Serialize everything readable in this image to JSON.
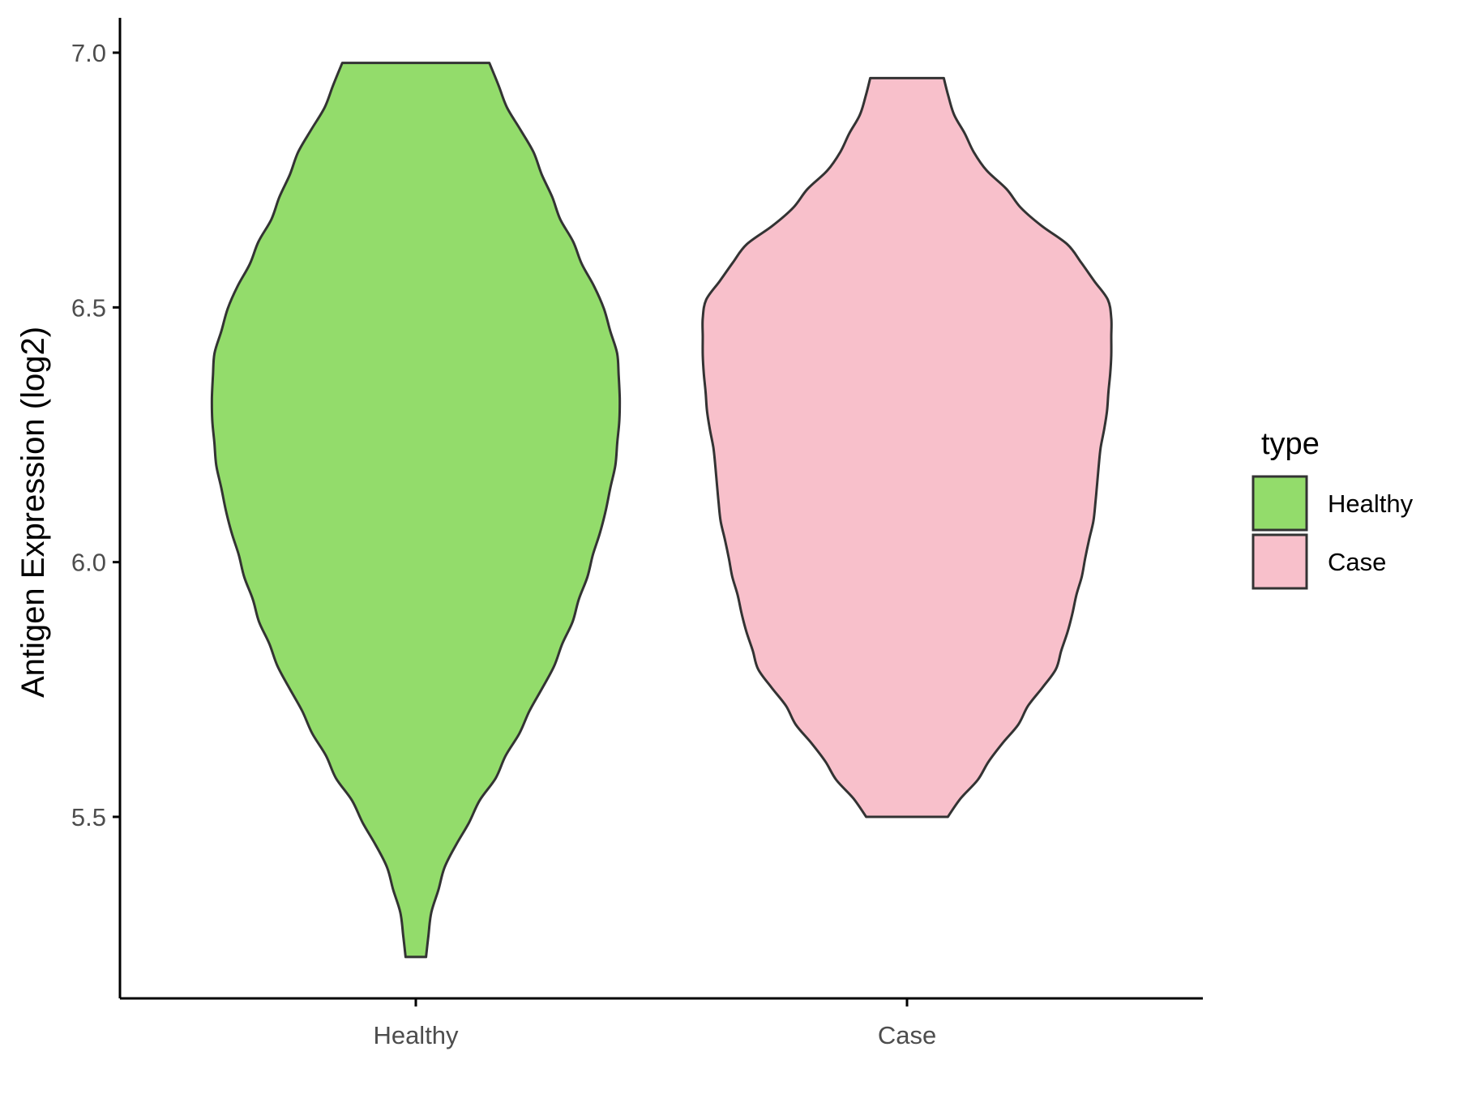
{
  "chart_data": {
    "type": "violin",
    "title": "",
    "xlabel": "",
    "ylabel": "Antigen Expression (log2)",
    "categories": [
      "Healthy",
      "Case"
    ],
    "ylim": [
      5.13,
      7.07
    ],
    "y_ticks": [
      5.5,
      6.0,
      6.5,
      7.0
    ],
    "y_tick_labels": [
      "5.5",
      "6.0",
      "6.5",
      "7.0"
    ],
    "grid": false,
    "legend": {
      "title": "type",
      "position": "right",
      "entries": [
        "Healthy",
        "Case"
      ]
    },
    "series": [
      {
        "name": "Healthy",
        "color": "#93DC6B",
        "min": 5.225,
        "max": 6.98,
        "density_profile": [
          [
            5.225,
            0.05
          ],
          [
            5.3,
            0.07
          ],
          [
            5.4,
            0.14
          ],
          [
            5.5,
            0.27
          ],
          [
            5.6,
            0.42
          ],
          [
            5.7,
            0.55
          ],
          [
            5.8,
            0.68
          ],
          [
            5.9,
            0.78
          ],
          [
            6.0,
            0.86
          ],
          [
            6.1,
            0.93
          ],
          [
            6.2,
            0.98
          ],
          [
            6.3,
            1.0
          ],
          [
            6.4,
            0.99
          ],
          [
            6.5,
            0.92
          ],
          [
            6.6,
            0.8
          ],
          [
            6.7,
            0.68
          ],
          [
            6.8,
            0.58
          ],
          [
            6.9,
            0.44
          ],
          [
            6.98,
            0.36
          ]
        ]
      },
      {
        "name": "Case",
        "color": "#F8C0CB",
        "min": 5.5,
        "max": 6.95,
        "density_profile": [
          [
            5.5,
            0.2
          ],
          [
            5.6,
            0.39
          ],
          [
            5.7,
            0.57
          ],
          [
            5.8,
            0.74
          ],
          [
            5.9,
            0.81
          ],
          [
            6.0,
            0.87
          ],
          [
            6.1,
            0.92
          ],
          [
            6.2,
            0.94
          ],
          [
            6.3,
            0.98
          ],
          [
            6.4,
            1.0
          ],
          [
            6.5,
            1.0
          ],
          [
            6.6,
            0.84
          ],
          [
            6.7,
            0.55
          ],
          [
            6.8,
            0.33
          ],
          [
            6.9,
            0.21
          ],
          [
            6.95,
            0.18
          ]
        ]
      }
    ]
  }
}
